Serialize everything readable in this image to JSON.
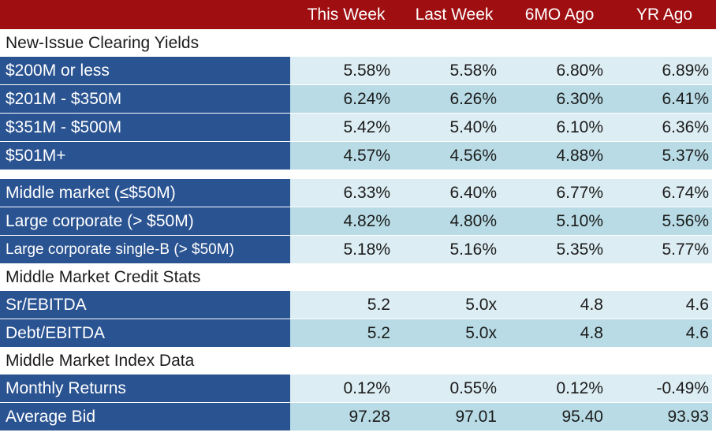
{
  "header": {
    "columns": [
      "This Week",
      "Last Week",
      "6MO Ago",
      "YR Ago"
    ]
  },
  "sections": {
    "clearing": {
      "title": "New-Issue Clearing Yields",
      "rows": [
        {
          "label": "$200M or less",
          "values": [
            "5.58%",
            "5.58%",
            "6.80%",
            "6.89%"
          ]
        },
        {
          "label": "$201M - $350M",
          "values": [
            "6.24%",
            "6.26%",
            "6.30%",
            "6.41%"
          ]
        },
        {
          "label": "$351M - $500M",
          "values": [
            "5.42%",
            "5.40%",
            "6.10%",
            "6.36%"
          ]
        },
        {
          "label": "$501M+",
          "values": [
            "4.57%",
            "4.56%",
            "4.88%",
            "5.37%"
          ]
        }
      ]
    },
    "market": {
      "rows": [
        {
          "label": "Middle market (≤$50M)",
          "values": [
            "6.33%",
            "6.40%",
            "6.77%",
            "6.74%"
          ]
        },
        {
          "label": "Large corporate (> $50M)",
          "values": [
            "4.82%",
            "4.80%",
            "5.10%",
            "5.56%"
          ]
        },
        {
          "label": "Large corporate single-B (> $50M)",
          "values": [
            "5.18%",
            "5.16%",
            "5.35%",
            "5.77%"
          ]
        }
      ]
    },
    "credit": {
      "title": "Middle Market Credit Stats",
      "rows": [
        {
          "label": "Sr/EBITDA",
          "values": [
            "5.2",
            "5.0x",
            "4.8",
            "4.6"
          ]
        },
        {
          "label": "Debt/EBITDA",
          "values": [
            "5.2",
            "5.0x",
            "4.8",
            "4.6"
          ]
        }
      ]
    },
    "index": {
      "title": "Middle Market Index Data",
      "rows": [
        {
          "label": "Monthly Returns",
          "values": [
            "0.12%",
            "0.55%",
            "0.12%",
            "-0.49%"
          ]
        },
        {
          "label": "Average Bid",
          "values": [
            "97.28",
            "97.01",
            "95.40",
            "93.93"
          ]
        }
      ]
    }
  },
  "colors": {
    "header_bg": "#9f0f12",
    "label_bg": "#2a5391",
    "row_light": "#dcedf3",
    "row_mid": "#b8dbe5"
  }
}
